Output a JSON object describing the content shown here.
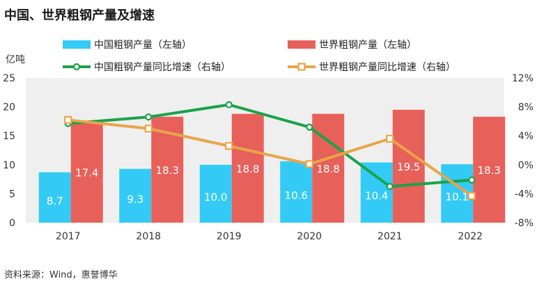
{
  "page": {
    "title": "中国、世界粗钢产量及增速",
    "source": "资料来源：Wind，惠誉博华"
  },
  "chart_data": {
    "type": "bar",
    "title": "中国、世界粗钢产量及增速",
    "ylabel": "亿吨",
    "categories": [
      "2017",
      "2018",
      "2019",
      "2020",
      "2021",
      "2022"
    ],
    "ylim": [
      0,
      25
    ],
    "yticks": [
      "0",
      "5",
      "10",
      "15",
      "20",
      "25"
    ],
    "y2lim": [
      -8,
      12
    ],
    "y2ticks": [
      "-8%",
      "-4%",
      "0%",
      "4%",
      "8%",
      "12%"
    ],
    "grid": false,
    "legend_position": "top",
    "series": [
      {
        "name": "中国粗钢产量（左轴）",
        "type": "bar",
        "axis": "left",
        "color": "#33cbf5",
        "values": [
          8.7,
          9.3,
          10.0,
          10.6,
          10.4,
          10.1
        ],
        "labels": [
          "8.7",
          "9.3",
          "10.0",
          "10.6",
          "10.4",
          "10.1"
        ]
      },
      {
        "name": "世界粗钢产量（左轴）",
        "type": "bar",
        "axis": "left",
        "color": "#e8605a",
        "values": [
          17.4,
          18.3,
          18.8,
          18.8,
          19.5,
          18.3
        ],
        "labels": [
          "17.4",
          "18.3",
          "18.8",
          "18.8",
          "19.5",
          "18.3"
        ]
      },
      {
        "name": "中国粗钢产量同比增速（右轴）",
        "type": "line",
        "axis": "right",
        "color": "#1aa349",
        "marker": "circle",
        "values": [
          5.7,
          6.6,
          8.3,
          5.2,
          -3.0,
          -2.1
        ]
      },
      {
        "name": "世界粗钢产量同比增速（右轴）",
        "type": "line",
        "axis": "right",
        "color": "#e8a54a",
        "marker": "square",
        "values": [
          6.2,
          5.0,
          2.6,
          0.1,
          3.6,
          -4.3
        ]
      }
    ]
  }
}
